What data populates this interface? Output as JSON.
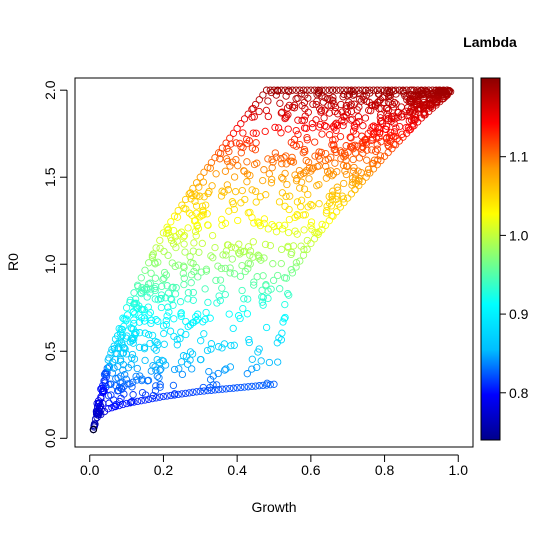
{
  "chart_data": {
    "type": "scatter",
    "title": "",
    "xlabel": "Growth",
    "ylabel": "R0",
    "xlim": [
      -0.04,
      1.04
    ],
    "ylim": [
      -0.05,
      2.07
    ],
    "x_ticks": [
      0.0,
      0.2,
      0.4,
      0.6,
      0.8,
      1.0
    ],
    "x_tick_labels": [
      "0.0",
      "0.2",
      "0.4",
      "0.6",
      "0.8",
      "1.0"
    ],
    "y_ticks": [
      0.0,
      0.5,
      1.0,
      1.5,
      2.0
    ],
    "y_tick_labels": [
      "0.0",
      "0.5",
      "1.0",
      "1.5",
      "2.0"
    ],
    "grid": false,
    "marker": "open-circle",
    "color_variable": "Lambda",
    "colorbar": {
      "title": "Lambda",
      "range": [
        0.74,
        1.2
      ],
      "ticks": [
        0.8,
        0.9,
        1.0,
        1.1
      ],
      "tick_labels": [
        "0.8",
        "0.9",
        "1.0",
        "1.1"
      ],
      "colors": [
        "#00008B",
        "#0000FF",
        "#00BFFF",
        "#00FFFF",
        "#7FFF7F",
        "#FFFF00",
        "#FF9900",
        "#FF0000",
        "#8B0000"
      ]
    },
    "region": {
      "growth_range": [
        0.01,
        0.98
      ],
      "r0_cap": 2.0,
      "lower_boundary": [
        [
          0.01,
          0.05
        ],
        [
          0.02,
          0.12
        ],
        [
          0.05,
          0.17
        ],
        [
          0.1,
          0.2
        ],
        [
          0.2,
          0.24
        ],
        [
          0.3,
          0.27
        ],
        [
          0.4,
          0.29
        ],
        [
          0.5,
          0.31
        ],
        [
          0.55,
          0.95
        ],
        [
          0.6,
          1.12
        ],
        [
          0.7,
          1.38
        ],
        [
          0.8,
          1.62
        ],
        [
          0.9,
          1.84
        ],
        [
          0.98,
          1.99
        ]
      ],
      "upper_boundary": [
        [
          0.01,
          0.05
        ],
        [
          0.02,
          0.2
        ],
        [
          0.05,
          0.45
        ],
        [
          0.1,
          0.75
        ],
        [
          0.2,
          1.18
        ],
        [
          0.3,
          1.5
        ],
        [
          0.4,
          1.78
        ],
        [
          0.48,
          2.0
        ],
        [
          0.98,
          2.0
        ]
      ],
      "points_rendered": 1200
    }
  }
}
